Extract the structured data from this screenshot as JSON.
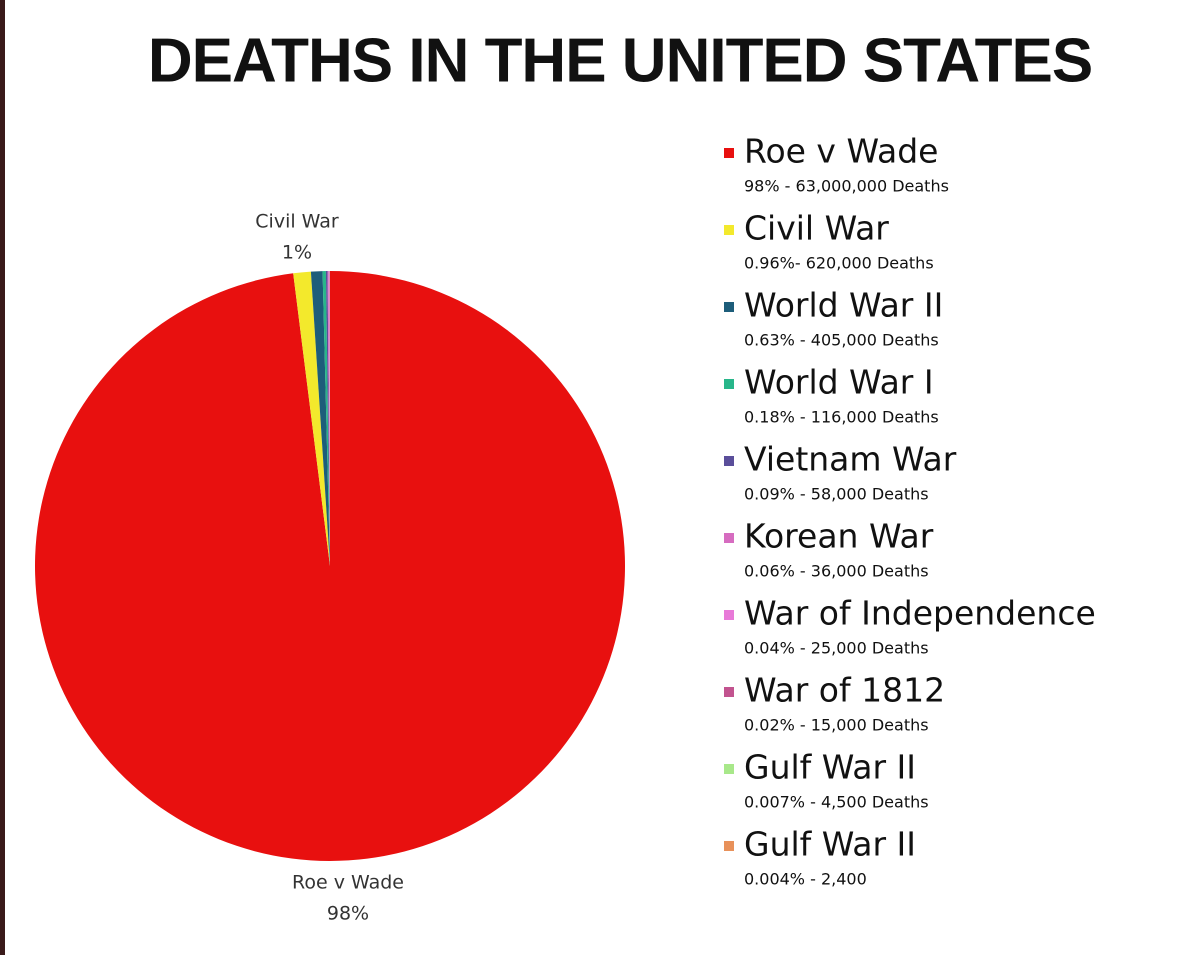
{
  "chart_data": {
    "type": "pie",
    "title": "DEATHS IN THE UNITED STATES",
    "categories": [
      "Roe v Wade",
      "Civil War",
      "World War II",
      "World War I",
      "Vietnam War",
      "Korean War",
      "War of Independence",
      "War of 1812",
      "Gulf War II",
      "Gulf War II"
    ],
    "values": [
      98,
      0.96,
      0.63,
      0.18,
      0.09,
      0.06,
      0.04,
      0.02,
      0.007,
      0.004
    ],
    "value_labels": [
      "98%",
      "1%",
      null,
      null,
      null,
      null,
      null,
      null,
      null,
      null
    ],
    "legend_details": [
      "98% - 63,000,000 Deaths",
      "0.96%- 620,000 Deaths",
      "0.63% - 405,000 Deaths",
      "0.18% - 116,000 Deaths",
      "0.09% - 58,000 Deaths",
      "0.06% - 36,000 Deaths",
      "0.04% - 25,000 Deaths",
      "0.02% - 15,000 Deaths",
      "0.007% - 4,500 Deaths",
      "0.004% - 2,400"
    ],
    "colors": [
      "#e8100f",
      "#f3e92c",
      "#1d5d7a",
      "#28b68a",
      "#5a4e9a",
      "#d66cc0",
      "#e87ad8",
      "#c2538f",
      "#a8e88a",
      "#e8915a"
    ]
  }
}
